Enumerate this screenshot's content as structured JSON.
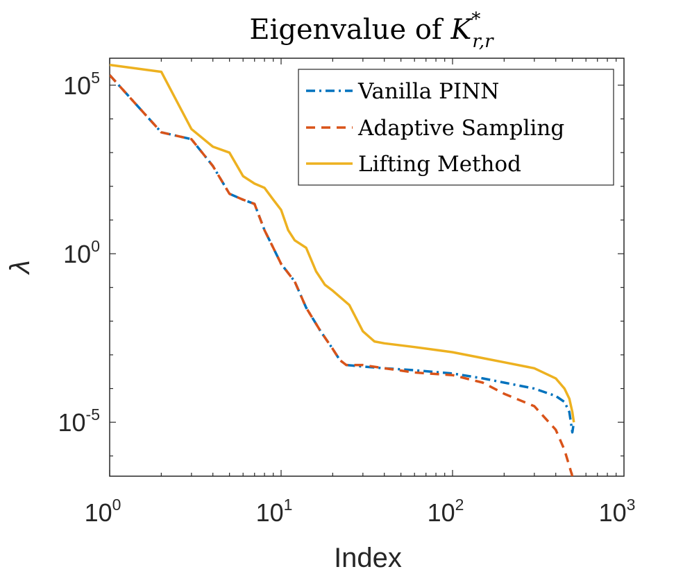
{
  "chart_data": {
    "type": "line",
    "title": "Eigenvalue of K*r,r",
    "title_parts": {
      "base": "Eigenvalue of ",
      "symbol": "K",
      "superscript": "*",
      "subscript": "r,r"
    },
    "xlabel": "Index",
    "ylabel": "λ",
    "xscale": "log",
    "yscale": "log",
    "xlim": [
      1,
      1000
    ],
    "ylim": [
      2.51e-07,
      631000
    ],
    "x_ticks": [
      {
        "value": 1,
        "base": "10",
        "exp": "0"
      },
      {
        "value": 10,
        "base": "10",
        "exp": "1"
      },
      {
        "value": 100,
        "base": "10",
        "exp": "2"
      },
      {
        "value": 1000,
        "base": "10",
        "exp": "3"
      }
    ],
    "y_ticks": [
      {
        "value": 1e-05,
        "base": "10",
        "exp": "-5"
      },
      {
        "value": 1,
        "base": "10",
        "exp": "0"
      },
      {
        "value": 100000,
        "base": "10",
        "exp": "5"
      }
    ],
    "legend_position": "top-right",
    "series": [
      {
        "name": "Vanilla PINN",
        "color": "#0072BD",
        "style": "dash-dot",
        "x": [
          1,
          2,
          3,
          4,
          5,
          6,
          7,
          8,
          9,
          10,
          12,
          14,
          17,
          20,
          22,
          24,
          30,
          40,
          60,
          100,
          150,
          200,
          300,
          400,
          450,
          480,
          500,
          510
        ],
        "y": [
          200000,
          4000,
          2500,
          400,
          60,
          40,
          30,
          5,
          1.5,
          0.5,
          0.15,
          0.025,
          0.005,
          0.0015,
          0.0007,
          0.0005,
          0.00045,
          0.0004,
          0.00035,
          0.00028,
          0.0002,
          0.00015,
          0.0001,
          6e-05,
          4e-05,
          2e-05,
          5e-06,
          1e-05
        ]
      },
      {
        "name": "Adaptive Sampling",
        "color": "#D95319",
        "style": "dashed",
        "x": [
          1,
          2,
          3,
          4,
          5,
          6,
          7,
          8,
          9,
          10,
          12,
          14,
          17,
          20,
          22,
          24,
          30,
          40,
          60,
          100,
          150,
          200,
          300,
          400,
          450,
          480,
          500,
          510
        ],
        "y": [
          200000,
          4000,
          2500,
          400,
          60,
          40,
          30,
          5,
          1.5,
          0.5,
          0.15,
          0.025,
          0.005,
          0.0015,
          0.0007,
          0.0005,
          0.0005,
          0.0004,
          0.0003,
          0.00025,
          0.00015,
          7e-05,
          3e-05,
          6e-06,
          1.5e-06,
          5e-07,
          2.5e-07,
          2.5e-07
        ]
      },
      {
        "name": "Lifting Method",
        "color": "#EDB120",
        "style": "solid",
        "x": [
          1,
          2,
          3,
          4,
          5,
          6,
          7,
          8,
          9,
          10,
          11,
          12,
          14,
          16,
          18,
          20,
          25,
          30,
          35,
          40,
          60,
          100,
          150,
          200,
          300,
          400,
          450,
          480,
          500,
          510
        ],
        "y": [
          400000,
          250000,
          5000,
          1500,
          1000,
          200,
          120,
          90,
          40,
          20,
          5,
          2.5,
          1.5,
          0.3,
          0.12,
          0.08,
          0.03,
          0.005,
          0.0025,
          0.0022,
          0.0017,
          0.0012,
          0.0008,
          0.0006,
          0.0004,
          0.0002,
          0.0001,
          5e-05,
          2e-05,
          1e-05
        ]
      }
    ]
  }
}
